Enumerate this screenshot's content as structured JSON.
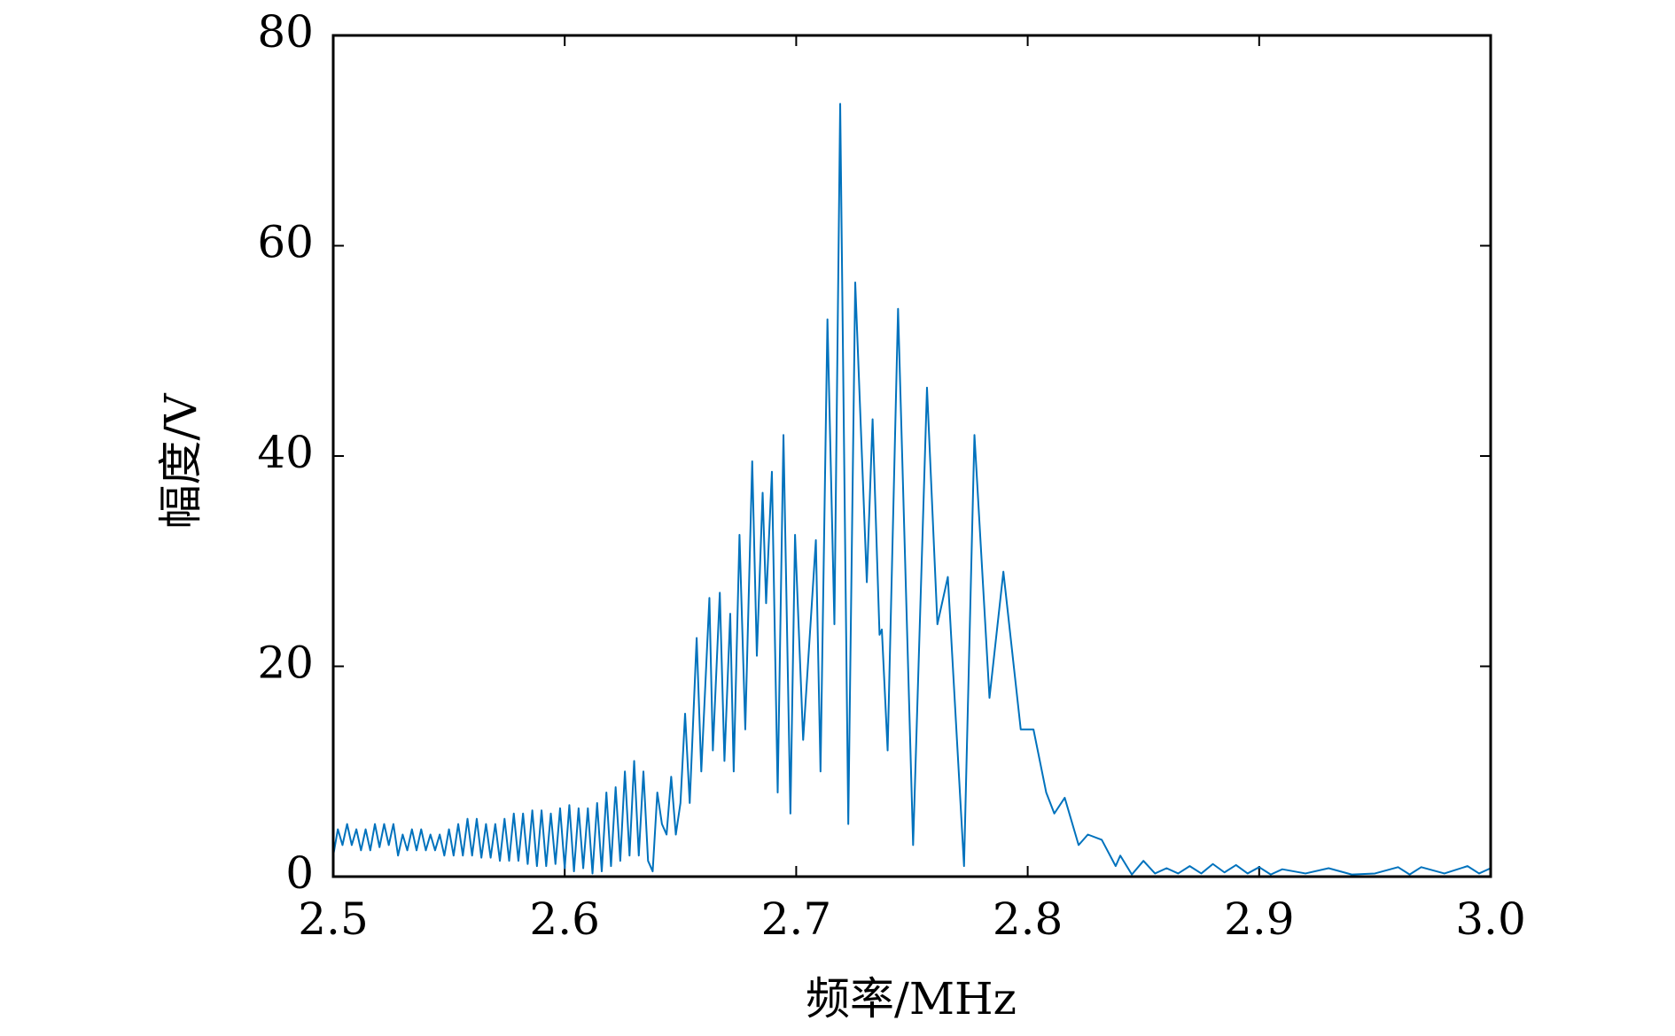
{
  "chart_data": {
    "type": "line",
    "x_label": "频率/MHz",
    "y_label": "幅度/V",
    "color": "#0072bd",
    "xlim": [
      2.5,
      3
    ],
    "xticks": [
      2.5,
      2.6,
      2.7,
      2.8,
      2.9,
      {
        "value": 3,
        "label": "3.0"
      }
    ],
    "ylim": [
      0,
      80
    ],
    "yticks": [
      0,
      20,
      40,
      60,
      80
    ],
    "x": [
      2.5,
      2.502,
      2.504,
      2.506,
      2.508,
      2.51,
      2.512,
      2.514,
      2.516,
      2.518,
      2.52,
      2.522,
      2.524,
      2.526,
      2.528,
      2.53,
      2.532,
      2.534,
      2.536,
      2.538,
      2.54,
      2.542,
      2.544,
      2.546,
      2.548,
      2.55,
      2.552,
      2.554,
      2.556,
      2.558,
      2.56,
      2.562,
      2.564,
      2.566,
      2.568,
      2.57,
      2.572,
      2.574,
      2.576,
      2.578,
      2.58,
      2.582,
      2.584,
      2.586,
      2.588,
      2.59,
      2.592,
      2.594,
      2.596,
      2.598,
      2.6,
      2.602,
      2.604,
      2.606,
      2.608,
      2.61,
      2.612,
      2.614,
      2.616,
      2.618,
      2.62,
      2.622,
      2.624,
      2.626,
      2.628,
      2.63,
      2.632,
      2.634,
      2.636,
      2.638,
      2.64,
      2.642,
      2.644,
      2.646,
      2.648,
      2.65,
      2.652,
      2.654,
      2.657,
      2.659,
      2.6625,
      2.664,
      2.667,
      2.669,
      2.6715,
      2.673,
      2.6755,
      2.678,
      2.681,
      2.683,
      2.6855,
      2.687,
      2.6895,
      2.692,
      2.6945,
      2.6975,
      2.6995,
      2.703,
      2.7085,
      2.7105,
      2.7135,
      2.7165,
      2.719,
      2.7225,
      2.7255,
      2.7305,
      2.733,
      2.736,
      2.737,
      2.7395,
      2.744,
      2.7505,
      2.7565,
      2.761,
      2.7655,
      2.7725,
      2.777,
      2.7835,
      2.7895,
      2.797,
      2.8025,
      2.808,
      2.8115,
      2.816,
      2.822,
      2.826,
      2.832,
      2.838,
      2.84,
      2.845,
      2.85,
      2.855,
      2.86,
      2.865,
      2.87,
      2.875,
      2.88,
      2.885,
      2.89,
      2.895,
      2.9,
      2.905,
      2.91,
      2.92,
      2.93,
      2.94,
      2.95,
      2.96,
      2.965,
      2.97,
      2.98,
      2.99,
      2.995,
      3.0
    ],
    "values": [
      2,
      4.5,
      3,
      5,
      3,
      4.5,
      2.5,
      4.5,
      2.5,
      5,
      2.8,
      5,
      3,
      5,
      2,
      4,
      2.5,
      4.5,
      2.5,
      4.5,
      2.5,
      4,
      2.5,
      4,
      2,
      4.5,
      2,
      5,
      2,
      5.5,
      2,
      5.5,
      1.8,
      5,
      1.8,
      5,
      1.5,
      5.5,
      1.5,
      6,
      1.5,
      6,
      1.2,
      6.3,
      1,
      6.3,
      1,
      6,
      1.2,
      6.5,
      0.8,
      6.8,
      0.5,
      6.5,
      0.8,
      6.5,
      0.3,
      7,
      0.5,
      8,
      1,
      8.5,
      1.5,
      10,
      2,
      11,
      2,
      10,
      1.5,
      0.5,
      8,
      5,
      4,
      9.5,
      4,
      7,
      15.5,
      7,
      22.7,
      10,
      26.5,
      12,
      27,
      11,
      25,
      10,
      32.5,
      14,
      39.5,
      21,
      36.5,
      26,
      38.5,
      8,
      42,
      6,
      32.5,
      13,
      32,
      10,
      53,
      24,
      73.5,
      5,
      56.5,
      28,
      43.5,
      23,
      23.5,
      12,
      54,
      3,
      46.5,
      24,
      28.5,
      1,
      42,
      17,
      29,
      14,
      14,
      8,
      6,
      7.5,
      3,
      4,
      3.5,
      1,
      2,
      0.2,
      1.5,
      0.3,
      0.8,
      0.3,
      1,
      0.3,
      1.2,
      0.4,
      1.1,
      0.3,
      0.9,
      0.2,
      0.7,
      0.3,
      0.8,
      0.2,
      0.3,
      0.9,
      0.2,
      0.9,
      0.3,
      1,
      0.3,
      0.8
    ]
  }
}
